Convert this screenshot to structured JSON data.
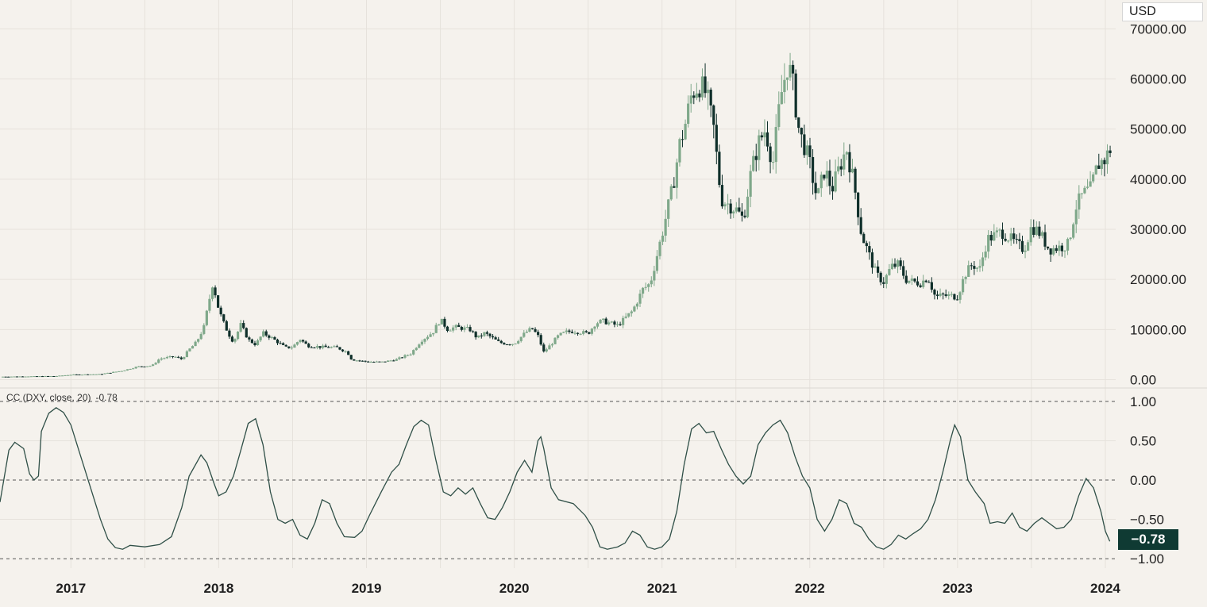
{
  "currency_label": "USD",
  "indicator": {
    "name": "CC (DXY, close, 20)",
    "value_text": "-0.78",
    "last_value_label": "−0.78"
  },
  "colors": {
    "background": "#f5f2ed",
    "grid": "#e6e2dc",
    "up_candle": "#7fa88a",
    "down_candle": "#0f2f2a",
    "indicator_line": "#2f4f47",
    "badge_bg": "#0f3a33"
  },
  "chart_data": [
    {
      "type": "candlestick",
      "title": "",
      "ylabel": "USD",
      "ylim": [
        -1500,
        71000
      ],
      "yticks": [
        0,
        10000,
        20000,
        30000,
        40000,
        50000,
        60000,
        70000
      ],
      "ytick_labels": [
        "0.00",
        "10000.00",
        "20000.00",
        "30000.00",
        "40000.00",
        "50000.00",
        "60000.00",
        "70000.00"
      ],
      "x_tick_labels": [
        "2017",
        "2018",
        "2019",
        "2020",
        "2021",
        "2022",
        "2023",
        "2024"
      ],
      "x_range": [
        2016.52,
        2024.07
      ],
      "grid": true,
      "close_series": [
        [
          2016.52,
          600
        ],
        [
          2016.9,
          720
        ],
        [
          2017.0,
          990
        ],
        [
          2017.2,
          1100
        ],
        [
          2017.35,
          1800
        ],
        [
          2017.45,
          2600
        ],
        [
          2017.55,
          2800
        ],
        [
          2017.6,
          4200
        ],
        [
          2017.7,
          4600
        ],
        [
          2017.75,
          4100
        ],
        [
          2017.8,
          6000
        ],
        [
          2017.85,
          7500
        ],
        [
          2017.9,
          10500
        ],
        [
          2017.93,
          15000
        ],
        [
          2017.96,
          19500
        ],
        [
          2018.0,
          14000
        ],
        [
          2018.03,
          11500
        ],
        [
          2018.07,
          9000
        ],
        [
          2018.1,
          7500
        ],
        [
          2018.15,
          11000
        ],
        [
          2018.2,
          8000
        ],
        [
          2018.25,
          7000
        ],
        [
          2018.3,
          9300
        ],
        [
          2018.35,
          8500
        ],
        [
          2018.4,
          7500
        ],
        [
          2018.45,
          6400
        ],
        [
          2018.5,
          6500
        ],
        [
          2018.55,
          8100
        ],
        [
          2018.6,
          6800
        ],
        [
          2018.7,
          6500
        ],
        [
          2018.8,
          6400
        ],
        [
          2018.87,
          5500
        ],
        [
          2018.9,
          4000
        ],
        [
          2018.95,
          3800
        ],
        [
          2019.0,
          3600
        ],
        [
          2019.1,
          3500
        ],
        [
          2019.2,
          4000
        ],
        [
          2019.3,
          5200
        ],
        [
          2019.37,
          7800
        ],
        [
          2019.45,
          9500
        ],
        [
          2019.5,
          12000
        ],
        [
          2019.55,
          10000
        ],
        [
          2019.6,
          10500
        ],
        [
          2019.7,
          10000
        ],
        [
          2019.75,
          8300
        ],
        [
          2019.8,
          9300
        ],
        [
          2019.9,
          7400
        ],
        [
          2019.95,
          7200
        ],
        [
          2020.0,
          7200
        ],
        [
          2020.08,
          9500
        ],
        [
          2020.12,
          10200
        ],
        [
          2020.16,
          8800
        ],
        [
          2020.2,
          5500
        ],
        [
          2020.25,
          7100
        ],
        [
          2020.3,
          8800
        ],
        [
          2020.35,
          9500
        ],
        [
          2020.4,
          9700
        ],
        [
          2020.5,
          9200
        ],
        [
          2020.55,
          11300
        ],
        [
          2020.6,
          11700
        ],
        [
          2020.7,
          10800
        ],
        [
          2020.8,
          13700
        ],
        [
          2020.87,
          18000
        ],
        [
          2020.92,
          19200
        ],
        [
          2021.0,
          29000
        ],
        [
          2021.03,
          33000
        ],
        [
          2021.07,
          38000
        ],
        [
          2021.12,
          47000
        ],
        [
          2021.15,
          50000
        ],
        [
          2021.2,
          57000
        ],
        [
          2021.25,
          59000
        ],
        [
          2021.3,
          57000
        ],
        [
          2021.35,
          50000
        ],
        [
          2021.4,
          36000
        ],
        [
          2021.45,
          35000
        ],
        [
          2021.5,
          34000
        ],
        [
          2021.55,
          32000
        ],
        [
          2021.6,
          41000
        ],
        [
          2021.65,
          47000
        ],
        [
          2021.7,
          50000
        ],
        [
          2021.75,
          43000
        ],
        [
          2021.8,
          56000
        ],
        [
          2021.85,
          63000
        ],
        [
          2021.88,
          60000
        ],
        [
          2021.93,
          49000
        ],
        [
          2021.96,
          47000
        ],
        [
          2022.0,
          43000
        ],
        [
          2022.05,
          36000
        ],
        [
          2022.1,
          42000
        ],
        [
          2022.15,
          38000
        ],
        [
          2022.22,
          44000
        ],
        [
          2022.25,
          46000
        ],
        [
          2022.3,
          39000
        ],
        [
          2022.35,
          29000
        ],
        [
          2022.45,
          21000
        ],
        [
          2022.5,
          19500
        ],
        [
          2022.55,
          22500
        ],
        [
          2022.6,
          23000
        ],
        [
          2022.65,
          20000
        ],
        [
          2022.7,
          19500
        ],
        [
          2022.75,
          19300
        ],
        [
          2022.8,
          20500
        ],
        [
          2022.85,
          16500
        ],
        [
          2022.9,
          16800
        ],
        [
          2023.0,
          16600
        ],
        [
          2023.05,
          21000
        ],
        [
          2023.1,
          23000
        ],
        [
          2023.15,
          22000
        ],
        [
          2023.2,
          28000
        ],
        [
          2023.3,
          29500
        ],
        [
          2023.4,
          27000
        ],
        [
          2023.45,
          26000
        ],
        [
          2023.5,
          30500
        ],
        [
          2023.55,
          29500
        ],
        [
          2023.62,
          26000
        ],
        [
          2023.7,
          26500
        ],
        [
          2023.75,
          27000
        ],
        [
          2023.8,
          34500
        ],
        [
          2023.85,
          37000
        ],
        [
          2023.9,
          38000
        ],
        [
          2023.95,
          43000
        ],
        [
          2024.0,
          44000
        ],
        [
          2024.03,
          46000
        ]
      ]
    },
    {
      "type": "line",
      "title": "CC (DXY, close, 20)",
      "ylim": [
        -1.12,
        1.12
      ],
      "yticks": [
        1.0,
        0.5,
        0.0,
        -0.5,
        -1.0
      ],
      "ytick_labels": [
        "1.00",
        "0.50",
        "0.00",
        "−0.50",
        "−1.00"
      ],
      "reference_lines": [
        1,
        0,
        -1
      ],
      "x_range": [
        2016.52,
        2024.07
      ],
      "last_value": -0.78,
      "values": [
        [
          2016.52,
          -0.28
        ],
        [
          2016.55,
          0.05
        ],
        [
          2016.58,
          0.38
        ],
        [
          2016.62,
          0.48
        ],
        [
          2016.68,
          0.4
        ],
        [
          2016.72,
          0.08
        ],
        [
          2016.75,
          0.0
        ],
        [
          2016.78,
          0.05
        ],
        [
          2016.8,
          0.62
        ],
        [
          2016.85,
          0.85
        ],
        [
          2016.9,
          0.92
        ],
        [
          2016.95,
          0.86
        ],
        [
          2017.0,
          0.7
        ],
        [
          2017.05,
          0.4
        ],
        [
          2017.1,
          0.1
        ],
        [
          2017.15,
          -0.2
        ],
        [
          2017.2,
          -0.5
        ],
        [
          2017.25,
          -0.75
        ],
        [
          2017.3,
          -0.86
        ],
        [
          2017.35,
          -0.88
        ],
        [
          2017.4,
          -0.83
        ],
        [
          2017.5,
          -0.85
        ],
        [
          2017.6,
          -0.82
        ],
        [
          2017.68,
          -0.72
        ],
        [
          2017.75,
          -0.35
        ],
        [
          2017.8,
          0.05
        ],
        [
          2017.88,
          0.32
        ],
        [
          2017.92,
          0.22
        ],
        [
          2017.97,
          -0.05
        ],
        [
          2018.0,
          -0.2
        ],
        [
          2018.05,
          -0.15
        ],
        [
          2018.1,
          0.05
        ],
        [
          2018.15,
          0.38
        ],
        [
          2018.2,
          0.72
        ],
        [
          2018.25,
          0.78
        ],
        [
          2018.3,
          0.45
        ],
        [
          2018.35,
          -0.15
        ],
        [
          2018.4,
          -0.5
        ],
        [
          2018.45,
          -0.55
        ],
        [
          2018.5,
          -0.5
        ],
        [
          2018.55,
          -0.7
        ],
        [
          2018.6,
          -0.75
        ],
        [
          2018.65,
          -0.55
        ],
        [
          2018.7,
          -0.25
        ],
        [
          2018.75,
          -0.3
        ],
        [
          2018.8,
          -0.55
        ],
        [
          2018.85,
          -0.72
        ],
        [
          2018.92,
          -0.73
        ],
        [
          2018.97,
          -0.65
        ],
        [
          2019.02,
          -0.45
        ],
        [
          2019.1,
          -0.15
        ],
        [
          2019.17,
          0.1
        ],
        [
          2019.22,
          0.2
        ],
        [
          2019.27,
          0.45
        ],
        [
          2019.32,
          0.68
        ],
        [
          2019.37,
          0.76
        ],
        [
          2019.42,
          0.7
        ],
        [
          2019.47,
          0.25
        ],
        [
          2019.52,
          -0.15
        ],
        [
          2019.57,
          -0.2
        ],
        [
          2019.62,
          -0.1
        ],
        [
          2019.67,
          -0.18
        ],
        [
          2019.72,
          -0.1
        ],
        [
          2019.77,
          -0.3
        ],
        [
          2019.82,
          -0.48
        ],
        [
          2019.87,
          -0.5
        ],
        [
          2019.92,
          -0.35
        ],
        [
          2019.97,
          -0.15
        ],
        [
          2020.02,
          0.1
        ],
        [
          2020.07,
          0.25
        ],
        [
          2020.12,
          0.1
        ],
        [
          2020.16,
          0.5
        ],
        [
          2020.18,
          0.55
        ],
        [
          2020.2,
          0.4
        ],
        [
          2020.25,
          -0.1
        ],
        [
          2020.3,
          -0.25
        ],
        [
          2020.4,
          -0.3
        ],
        [
          2020.48,
          -0.45
        ],
        [
          2020.53,
          -0.6
        ],
        [
          2020.58,
          -0.85
        ],
        [
          2020.63,
          -0.88
        ],
        [
          2020.7,
          -0.85
        ],
        [
          2020.75,
          -0.8
        ],
        [
          2020.8,
          -0.65
        ],
        [
          2020.85,
          -0.7
        ],
        [
          2020.9,
          -0.85
        ],
        [
          2020.95,
          -0.88
        ],
        [
          2021.0,
          -0.85
        ],
        [
          2021.05,
          -0.75
        ],
        [
          2021.1,
          -0.4
        ],
        [
          2021.15,
          0.2
        ],
        [
          2021.2,
          0.65
        ],
        [
          2021.25,
          0.72
        ],
        [
          2021.3,
          0.6
        ],
        [
          2021.35,
          0.62
        ],
        [
          2021.4,
          0.4
        ],
        [
          2021.45,
          0.2
        ],
        [
          2021.5,
          0.05
        ],
        [
          2021.55,
          -0.05
        ],
        [
          2021.6,
          0.05
        ],
        [
          2021.65,
          0.45
        ],
        [
          2021.7,
          0.6
        ],
        [
          2021.75,
          0.7
        ],
        [
          2021.8,
          0.76
        ],
        [
          2021.85,
          0.6
        ],
        [
          2021.9,
          0.3
        ],
        [
          2021.95,
          0.05
        ],
        [
          2022.0,
          -0.1
        ],
        [
          2022.05,
          -0.5
        ],
        [
          2022.1,
          -0.65
        ],
        [
          2022.15,
          -0.5
        ],
        [
          2022.2,
          -0.25
        ],
        [
          2022.25,
          -0.3
        ],
        [
          2022.3,
          -0.55
        ],
        [
          2022.35,
          -0.6
        ],
        [
          2022.4,
          -0.75
        ],
        [
          2022.45,
          -0.85
        ],
        [
          2022.5,
          -0.88
        ],
        [
          2022.55,
          -0.82
        ],
        [
          2022.6,
          -0.7
        ],
        [
          2022.65,
          -0.75
        ],
        [
          2022.7,
          -0.68
        ],
        [
          2022.75,
          -0.62
        ],
        [
          2022.8,
          -0.5
        ],
        [
          2022.85,
          -0.25
        ],
        [
          2022.9,
          0.1
        ],
        [
          2022.95,
          0.5
        ],
        [
          2022.98,
          0.7
        ],
        [
          2023.02,
          0.55
        ],
        [
          2023.07,
          0.0
        ],
        [
          2023.12,
          -0.15
        ],
        [
          2023.18,
          -0.3
        ],
        [
          2023.22,
          -0.55
        ],
        [
          2023.27,
          -0.53
        ],
        [
          2023.32,
          -0.55
        ],
        [
          2023.37,
          -0.42
        ],
        [
          2023.42,
          -0.6
        ],
        [
          2023.47,
          -0.65
        ],
        [
          2023.52,
          -0.55
        ],
        [
          2023.57,
          -0.48
        ],
        [
          2023.62,
          -0.55
        ],
        [
          2023.67,
          -0.62
        ],
        [
          2023.72,
          -0.6
        ],
        [
          2023.77,
          -0.5
        ],
        [
          2023.82,
          -0.2
        ],
        [
          2023.87,
          0.02
        ],
        [
          2023.92,
          -0.1
        ],
        [
          2023.97,
          -0.4
        ],
        [
          2024.0,
          -0.65
        ],
        [
          2024.03,
          -0.78
        ]
      ]
    }
  ]
}
